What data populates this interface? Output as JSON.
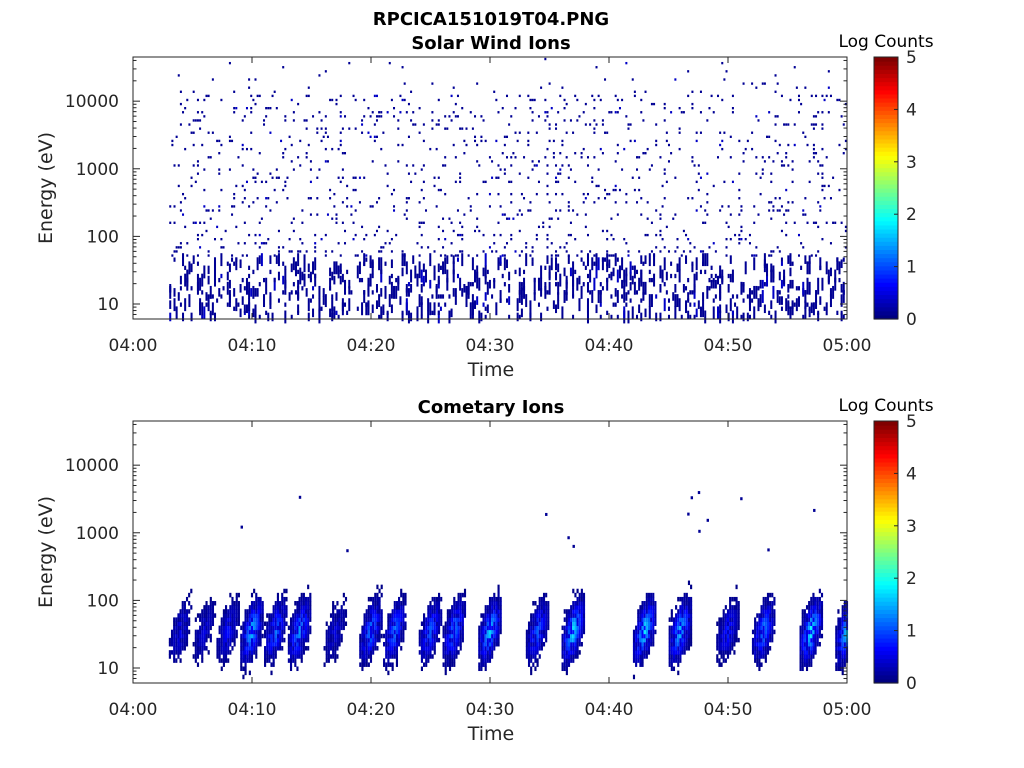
{
  "figure": {
    "title": "RPCICA151019T04.PNG"
  },
  "colorbar": {
    "label": "Log Counts",
    "ticks": [
      "0",
      "1",
      "2",
      "3",
      "4",
      "5"
    ],
    "range": [
      0,
      5
    ],
    "colormap": "jet"
  },
  "chart_data": [
    {
      "type": "heatmap",
      "title": "Solar Wind Ions",
      "xlabel": "Time",
      "ylabel": "Energy (eV)",
      "x_ticks": [
        "04:00",
        "04:10",
        "04:20",
        "04:30",
        "04:40",
        "04:50",
        "05:00"
      ],
      "y_ticks": [
        "10",
        "100",
        "1000",
        "10000"
      ],
      "xlim": [
        "04:00",
        "05:00"
      ],
      "ylim": [
        6,
        45000
      ],
      "y_scale": "log",
      "colorbar_label": "Log Counts",
      "crange": [
        0,
        5
      ],
      "data_start": "04:03",
      "description_values": "sparse single counts (log counts ~0-0.3) scattered 10 eV to 30 keV from 04:03 to 05:00"
    },
    {
      "type": "heatmap",
      "title": "Cometary Ions",
      "xlabel": "Time",
      "ylabel": "Energy (eV)",
      "x_ticks": [
        "04:00",
        "04:10",
        "04:20",
        "04:30",
        "04:40",
        "04:50",
        "05:00"
      ],
      "y_ticks": [
        "10",
        "100",
        "1000",
        "10000"
      ],
      "xlim": [
        "04:00",
        "05:00"
      ],
      "ylim": [
        6,
        45000
      ],
      "y_scale": "log",
      "colorbar_label": "Log Counts",
      "crange": [
        0,
        5
      ],
      "bursts": [
        {
          "t": "04:04",
          "peak_log": 0.6
        },
        {
          "t": "04:06",
          "peak_log": 0.5
        },
        {
          "t": "04:08",
          "peak_log": 0.7
        },
        {
          "t": "04:10",
          "peak_log": 1.6
        },
        {
          "t": "04:12",
          "peak_log": 1.2
        },
        {
          "t": "04:14",
          "peak_log": 1.4
        },
        {
          "t": "04:17",
          "peak_log": 0.5
        },
        {
          "t": "04:20",
          "peak_log": 1.3
        },
        {
          "t": "04:22",
          "peak_log": 1.2
        },
        {
          "t": "04:25",
          "peak_log": 1.1
        },
        {
          "t": "04:27",
          "peak_log": 1.3
        },
        {
          "t": "04:30",
          "peak_log": 1.7
        },
        {
          "t": "04:34",
          "peak_log": 1.1
        },
        {
          "t": "04:37",
          "peak_log": 1.8
        },
        {
          "t": "04:43",
          "peak_log": 1.8
        },
        {
          "t": "04:46",
          "peak_log": 1.6
        },
        {
          "t": "04:50",
          "peak_log": 0.8
        },
        {
          "t": "04:53",
          "peak_log": 1.3
        },
        {
          "t": "04:57",
          "peak_log": 1.9
        },
        {
          "t": "05:00",
          "peak_log": 1.7
        }
      ]
    }
  ]
}
